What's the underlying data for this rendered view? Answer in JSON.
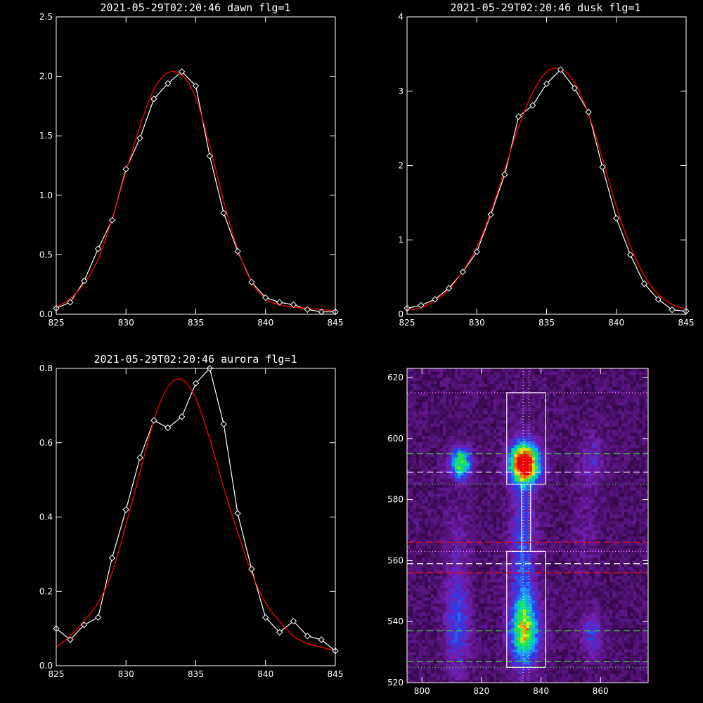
{
  "chart_data": [
    {
      "type": "line",
      "title": "2021-05-29T02:20:46 dawn flg=1",
      "xlim": [
        825,
        845
      ],
      "ylim": [
        0,
        2.5
      ],
      "xticks": [
        "825",
        "830",
        "835",
        "840",
        "845"
      ],
      "yticks": [
        "0.0",
        "0.5",
        "1.0",
        "1.5",
        "2.0",
        "2.5"
      ],
      "colors": {
        "data": "#ffffff",
        "fit": "#ff0000"
      },
      "series": [
        {
          "marker": "diamond",
          "x": [
            825,
            826,
            827,
            828,
            829,
            830,
            831,
            832,
            833,
            834,
            835,
            836,
            837,
            838,
            839,
            840,
            841,
            842,
            843,
            844,
            845
          ],
          "y": [
            0.05,
            0.1,
            0.28,
            0.55,
            0.79,
            1.22,
            1.48,
            1.81,
            1.94,
            2.04,
            1.92,
            1.33,
            0.85,
            0.53,
            0.27,
            0.14,
            0.1,
            0.08,
            0.04,
            0.02,
            0.02
          ]
        },
        {
          "x": [
            825,
            826,
            827,
            828,
            829,
            830,
            831,
            832,
            833,
            834,
            835,
            836,
            837,
            838,
            839,
            840,
            841,
            842,
            843,
            844,
            845
          ],
          "y": [
            0.06,
            0.13,
            0.26,
            0.46,
            0.8,
            1.2,
            1.58,
            1.89,
            2.03,
            2.01,
            1.82,
            1.42,
            0.95,
            0.55,
            0.27,
            0.13,
            0.08,
            0.06,
            0.05,
            0.04,
            0.03
          ]
        }
      ]
    },
    {
      "type": "line",
      "title": "2021-05-29T02:20:46 dusk flg=1",
      "xlim": [
        825,
        845
      ],
      "ylim": [
        0,
        4
      ],
      "xticks": [
        "825",
        "830",
        "835",
        "840",
        "845"
      ],
      "yticks": [
        "0",
        "1",
        "2",
        "3",
        "4"
      ],
      "colors": {
        "data": "#ffffff",
        "fit": "#ff0000"
      },
      "series": [
        {
          "marker": "diamond",
          "x": [
            825,
            826,
            827,
            828,
            829,
            830,
            831,
            832,
            833,
            834,
            835,
            836,
            837,
            838,
            839,
            840,
            841,
            842,
            843,
            844,
            845
          ],
          "y": [
            0.08,
            0.12,
            0.2,
            0.35,
            0.57,
            0.84,
            1.34,
            1.88,
            2.66,
            2.81,
            3.1,
            3.29,
            3.04,
            2.72,
            1.98,
            1.29,
            0.8,
            0.41,
            0.2,
            0.06,
            0.04
          ]
        },
        {
          "x": [
            825,
            826,
            827,
            828,
            829,
            830,
            831,
            832,
            833,
            834,
            835,
            836,
            837,
            838,
            839,
            840,
            841,
            842,
            843,
            844,
            845
          ],
          "y": [
            0.05,
            0.09,
            0.18,
            0.33,
            0.58,
            0.9,
            1.37,
            1.95,
            2.52,
            2.98,
            3.26,
            3.3,
            3.12,
            2.7,
            2.1,
            1.45,
            0.92,
            0.52,
            0.27,
            0.13,
            0.07
          ]
        }
      ]
    },
    {
      "type": "line",
      "title": "2021-05-29T02:20:46 aurora flg=1",
      "xlim": [
        825,
        845
      ],
      "ylim": [
        0,
        0.8
      ],
      "xticks": [
        "825",
        "830",
        "835",
        "840",
        "845"
      ],
      "yticks": [
        "0.0",
        "0.2",
        "0.4",
        "0.6",
        "0.8"
      ],
      "colors": {
        "data": "#ffffff",
        "fit": "#ff0000"
      },
      "series": [
        {
          "marker": "diamond",
          "x": [
            825,
            826,
            827,
            828,
            829,
            830,
            831,
            832,
            833,
            834,
            835,
            836,
            837,
            838,
            839,
            840,
            841,
            842,
            843,
            844,
            845
          ],
          "y": [
            0.1,
            0.07,
            0.11,
            0.13,
            0.29,
            0.42,
            0.56,
            0.66,
            0.64,
            0.67,
            0.76,
            0.8,
            0.65,
            0.41,
            0.26,
            0.13,
            0.09,
            0.12,
            0.08,
            0.07,
            0.04
          ]
        },
        {
          "x": [
            825,
            826,
            827,
            828,
            829,
            830,
            831,
            832,
            833,
            834,
            835,
            836,
            837,
            838,
            839,
            840,
            841,
            842,
            843,
            844,
            845
          ],
          "y": [
            0.05,
            0.08,
            0.12,
            0.17,
            0.25,
            0.38,
            0.52,
            0.66,
            0.75,
            0.77,
            0.72,
            0.61,
            0.48,
            0.36,
            0.25,
            0.17,
            0.12,
            0.08,
            0.06,
            0.05,
            0.04
          ]
        }
      ]
    },
    {
      "type": "heatmap",
      "xlim": [
        795,
        876
      ],
      "ylim": [
        520,
        623
      ],
      "xticks": [
        "800",
        "820",
        "840",
        "860"
      ],
      "yticks": [
        "520",
        "540",
        "560",
        "580",
        "600",
        "620"
      ],
      "blobs": [
        {
          "x": 834.5,
          "y": 592,
          "sx": 3.5,
          "sy": 4.5,
          "amp": 1.0
        },
        {
          "x": 813,
          "y": 592,
          "sx": 2.5,
          "sy": 3.5,
          "amp": 0.62
        },
        {
          "x": 834.5,
          "y": 537,
          "sx": 3.5,
          "sy": 7.0,
          "amp": 0.55
        },
        {
          "x": 834,
          "y": 560,
          "sx": 3.0,
          "sy": 22,
          "amp": 0.28
        },
        {
          "x": 812,
          "y": 540,
          "sx": 3.0,
          "sy": 12,
          "amp": 0.26
        },
        {
          "x": 857,
          "y": 536,
          "sx": 2.5,
          "sy": 5.0,
          "amp": 0.22
        },
        {
          "x": 857,
          "y": 593,
          "sx": 3.0,
          "sy": 6.0,
          "amp": 0.16
        },
        {
          "x": 812,
          "y": 568,
          "sx": 3.0,
          "sy": 8.0,
          "amp": 0.1
        },
        {
          "x": 855,
          "y": 570,
          "sx": 3.0,
          "sy": 10,
          "amp": 0.07
        }
      ],
      "boxes": [
        {
          "x0": 828.5,
          "x1": 841.5,
          "y0": 585,
          "y1": 615
        },
        {
          "x0": 828.5,
          "x1": 841.5,
          "y0": 525,
          "y1": 563
        }
      ],
      "vlines_dotted": [
        834,
        836
      ],
      "vlines_solid": [
        833.5,
        836.5
      ],
      "hlines": [
        {
          "y": 615,
          "color": "#ff7cff",
          "dash": "1,3"
        },
        {
          "y": 595,
          "color": "#33dd33",
          "dash": "9,5"
        },
        {
          "y": 589,
          "color": "#ffffff",
          "dash": "9,5"
        },
        {
          "y": 585,
          "color": "#33dd33",
          "dash": "1,3"
        },
        {
          "y": 566,
          "color": "#dd1111",
          "dash": "9,5"
        },
        {
          "y": 563,
          "color": "#ff7cff",
          "dash": "1,3"
        },
        {
          "y": 559,
          "color": "#ffffff",
          "dash": "9,5"
        },
        {
          "y": 556,
          "color": "#dd1111",
          "dash": "9,5"
        },
        {
          "y": 537,
          "color": "#33dd33",
          "dash": "9,5"
        },
        {
          "y": 527,
          "color": "#33dd33",
          "dash": "9,5"
        },
        {
          "y": 525,
          "color": "#33dd33",
          "dash": "1,3"
        }
      ]
    }
  ]
}
